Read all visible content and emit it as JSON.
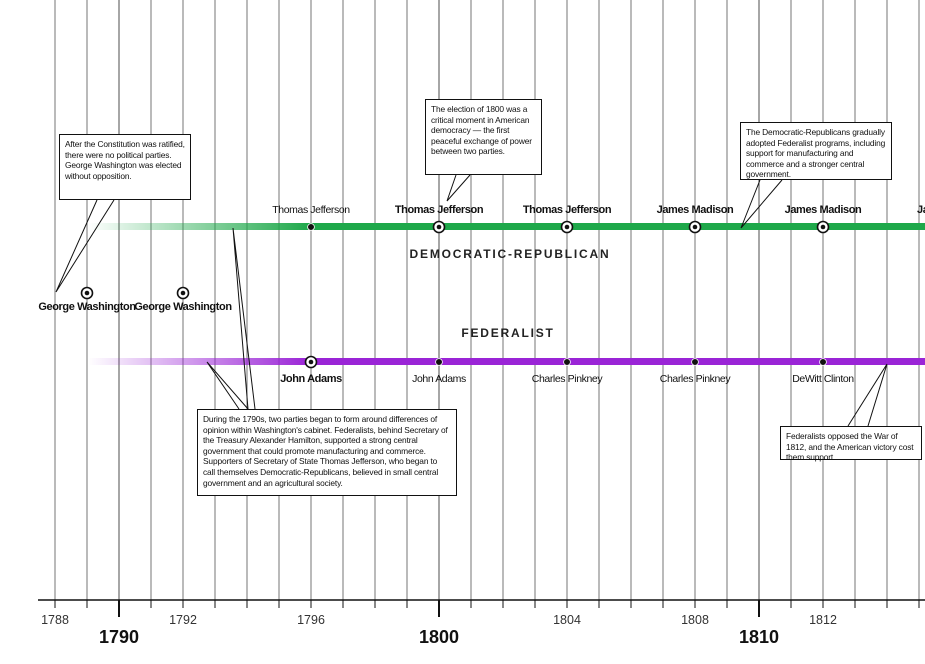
{
  "party_labels": {
    "democratic_republican": "DEMOCRATIC-REPUBLICAN",
    "federalist": "FEDERALIST"
  },
  "colors": {
    "democratic_republican": "#1ea84a",
    "federalist": "#9a24d6",
    "axis": "#111111"
  },
  "axis": {
    "start_year": 1788,
    "end_year": 1815,
    "minor_labels": [
      "1788",
      "1792",
      "1796",
      "1804",
      "1808",
      "1812"
    ],
    "major_labels": [
      "1790",
      "1800",
      "1810"
    ]
  },
  "elections": {
    "washington": [
      {
        "year": 1789,
        "name": "George Washington",
        "bold": true
      },
      {
        "year": 1792,
        "name": "George Washington",
        "bold": true
      }
    ],
    "democratic_republican": [
      {
        "year": 1796,
        "name": "Thomas Jefferson",
        "bold": false,
        "winner": false
      },
      {
        "year": 1800,
        "name": "Thomas Jefferson",
        "bold": true,
        "winner": true
      },
      {
        "year": 1804,
        "name": "Thomas Jefferson",
        "bold": true,
        "winner": true
      },
      {
        "year": 1808,
        "name": "James Madison",
        "bold": true,
        "winner": true
      },
      {
        "year": 1812,
        "name": "James Madison",
        "bold": true,
        "winner": true
      },
      {
        "year": 1816,
        "name": "Ja",
        "bold": true,
        "winner": true
      }
    ],
    "federalist": [
      {
        "year": 1796,
        "name": "John Adams",
        "bold": true,
        "winner": true
      },
      {
        "year": 1800,
        "name": "John Adams",
        "bold": false,
        "winner": false
      },
      {
        "year": 1804,
        "name": "Charles Pinkney",
        "bold": false,
        "winner": false
      },
      {
        "year": 1808,
        "name": "Charles Pinkney",
        "bold": false,
        "winner": false
      },
      {
        "year": 1812,
        "name": "DeWitt Clinton",
        "bold": false,
        "winner": false
      }
    ]
  },
  "callouts": {
    "constitution": "After the Constitution was ratified, there were no political parties. George Washington was elected without opposition.",
    "election_1800": "The election of 1800 was a critical moment in American democracy — the first peaceful exchange of power between two parties.",
    "dr_federalist_programs": "The Democratic-Republicans gradually adopted Federalist programs, including support for manufacturing and commerce and a stronger central government.",
    "two_parties": "During the 1790s, two parties began to form around differences of opinion within Washington's cabinet. Federalists, behind Secretary of the Treasury Alexander Hamilton, supported a strong central government that could promote manufacturing and commerce. Supporters of Secretary of State Thomas Jefferson, who began to call themselves Democratic-Republicans, believed in small central government and an agricultural society.",
    "war_1812": "Federalists opposed the War of 1812, and the American victory cost them support."
  }
}
